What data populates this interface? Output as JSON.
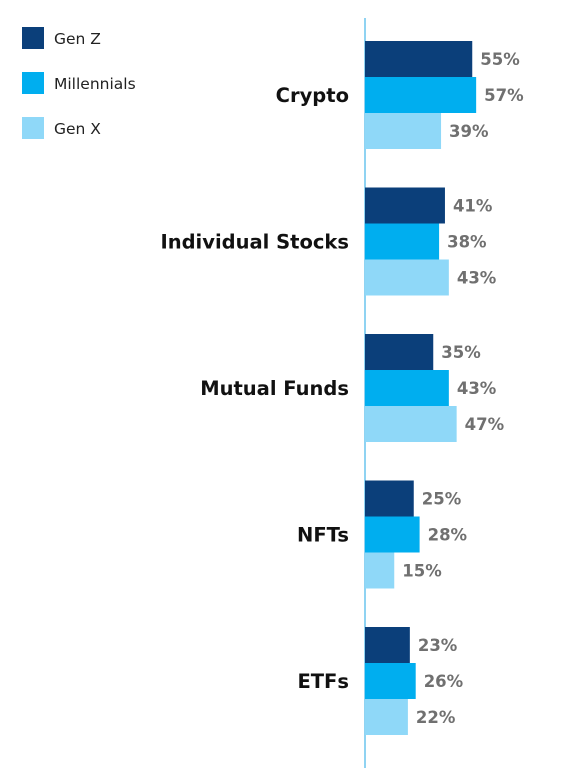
{
  "chart_data": {
    "type": "bar",
    "orientation": "horizontal",
    "categories": [
      "Crypto",
      "Individual Stocks",
      "Mutual Funds",
      "NFTs",
      "ETFs"
    ],
    "series": [
      {
        "name": "Gen Z",
        "color": "#0b3f7a",
        "values": [
          55,
          41,
          35,
          25,
          23
        ]
      },
      {
        "name": "Millennials",
        "color": "#00aeef",
        "values": [
          57,
          38,
          43,
          28,
          26
        ]
      },
      {
        "name": "Gen X",
        "color": "#8fd8f8",
        "values": [
          39,
          43,
          47,
          15,
          22
        ]
      }
    ],
    "value_suffix": "%",
    "xlim": [
      0,
      100
    ],
    "grid": false,
    "legend_position": "top-left",
    "axis_color": "#8fd3f2"
  }
}
